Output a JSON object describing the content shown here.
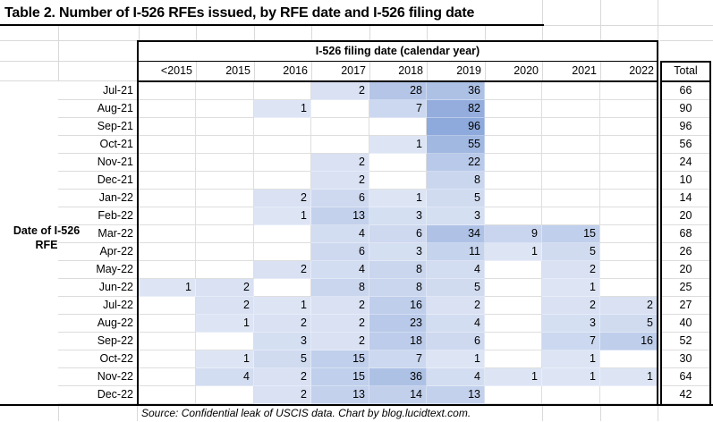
{
  "source_note": "Source: Confidential leak of USCIS data. Chart by blog.lucidtext.com.",
  "row_axis_label": "Date of I-526 RFE",
  "chart_data": {
    "type": "heatmap",
    "title": "Table 2. Number of I-526 RFEs issued, by RFE date and I-526 filing date",
    "column_group_label": "I-526 filing date (calendar year)",
    "columns": [
      "<2015",
      "2015",
      "2016",
      "2017",
      "2018",
      "2019",
      "2020",
      "2021",
      "2022"
    ],
    "total_label": "Total",
    "rows": [
      {
        "label": "Jul-21",
        "values": [
          null,
          null,
          null,
          2,
          28,
          36,
          null,
          null,
          null
        ],
        "total": 66
      },
      {
        "label": "Aug-21",
        "values": [
          null,
          null,
          1,
          null,
          7,
          82,
          null,
          null,
          null
        ],
        "total": 90
      },
      {
        "label": "Sep-21",
        "values": [
          null,
          null,
          null,
          null,
          null,
          96,
          null,
          null,
          null
        ],
        "total": 96
      },
      {
        "label": "Oct-21",
        "values": [
          null,
          null,
          null,
          null,
          1,
          55,
          null,
          null,
          null
        ],
        "total": 56
      },
      {
        "label": "Nov-21",
        "values": [
          null,
          null,
          null,
          2,
          null,
          22,
          null,
          null,
          null
        ],
        "total": 24
      },
      {
        "label": "Dec-21",
        "values": [
          null,
          null,
          null,
          2,
          null,
          8,
          null,
          null,
          null
        ],
        "total": 10
      },
      {
        "label": "Jan-22",
        "values": [
          null,
          null,
          2,
          6,
          1,
          5,
          null,
          null,
          null
        ],
        "total": 14
      },
      {
        "label": "Feb-22",
        "values": [
          null,
          null,
          1,
          13,
          3,
          3,
          null,
          null,
          null
        ],
        "total": 20
      },
      {
        "label": "Mar-22",
        "values": [
          null,
          null,
          null,
          4,
          6,
          34,
          9,
          15,
          null
        ],
        "total": 68
      },
      {
        "label": "Apr-22",
        "values": [
          null,
          null,
          null,
          6,
          3,
          11,
          1,
          5,
          null
        ],
        "total": 26
      },
      {
        "label": "May-22",
        "values": [
          null,
          null,
          2,
          4,
          8,
          4,
          null,
          2,
          null
        ],
        "total": 20
      },
      {
        "label": "Jun-22",
        "values": [
          1,
          2,
          null,
          8,
          8,
          5,
          null,
          1,
          null
        ],
        "total": 25
      },
      {
        "label": "Jul-22",
        "values": [
          null,
          2,
          1,
          2,
          16,
          2,
          null,
          2,
          2
        ],
        "total": 27
      },
      {
        "label": "Aug-22",
        "values": [
          null,
          1,
          2,
          2,
          23,
          4,
          null,
          3,
          5
        ],
        "total": 40
      },
      {
        "label": "Sep-22",
        "values": [
          null,
          null,
          3,
          2,
          18,
          6,
          null,
          7,
          16
        ],
        "total": 52
      },
      {
        "label": "Oct-22",
        "values": [
          null,
          1,
          5,
          15,
          7,
          1,
          null,
          1,
          null
        ],
        "total": 30
      },
      {
        "label": "Nov-22",
        "values": [
          null,
          4,
          2,
          15,
          36,
          4,
          1,
          1,
          1
        ],
        "total": 64
      },
      {
        "label": "Dec-22",
        "values": [
          null,
          null,
          2,
          13,
          14,
          13,
          null,
          null,
          null
        ],
        "total": 42
      }
    ],
    "heat_scale": {
      "min_color": "#EBEFF9",
      "max_color": "#8EA9DB",
      "max_value": 96,
      "exponent": 0.42
    },
    "layout_hints": {
      "legend": "none",
      "grid": "on",
      "totals_column": "right"
    }
  }
}
